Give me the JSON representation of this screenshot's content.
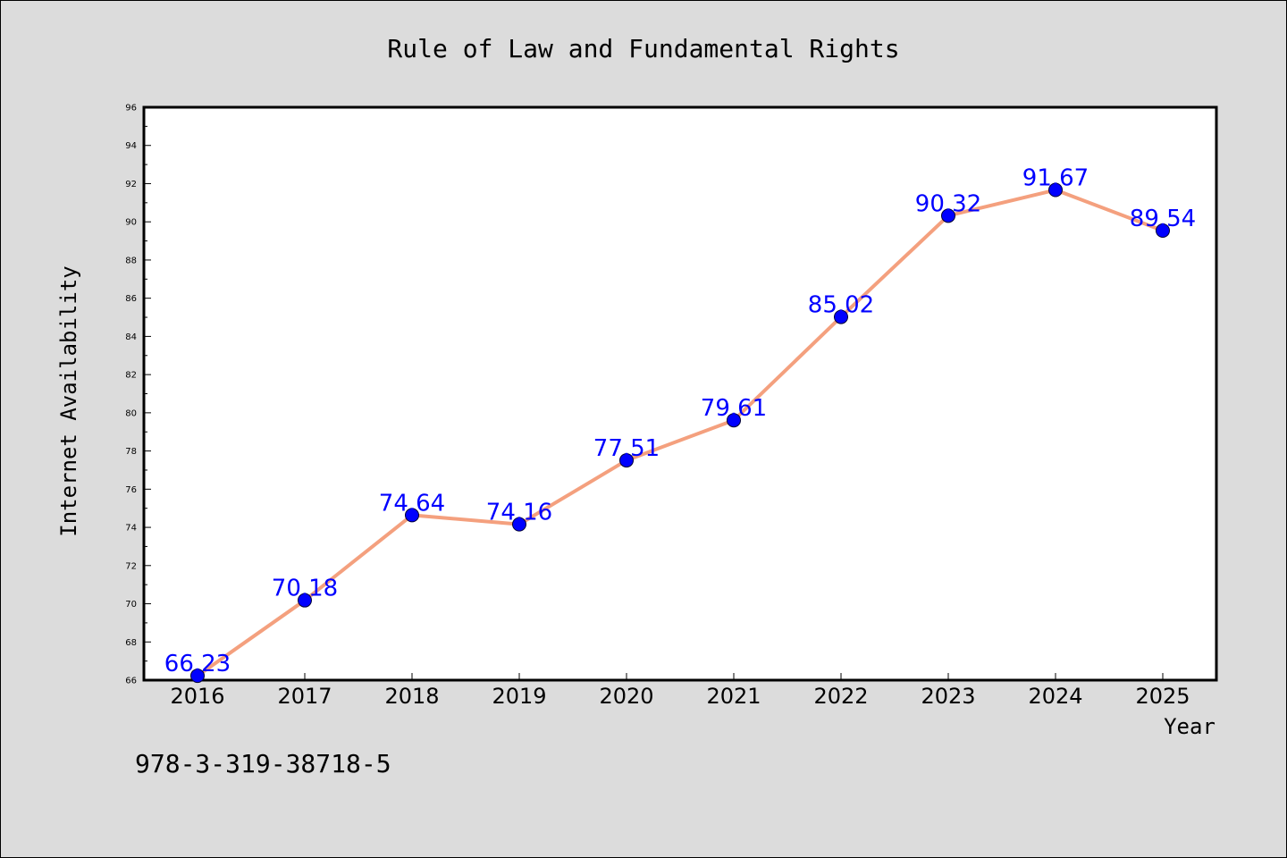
{
  "chart_data": {
    "type": "line",
    "title": "Rule of Law and Fundamental Rights",
    "xlabel": "Year",
    "ylabel": "Internet Availability",
    "x": [
      "2016",
      "2017",
      "2018",
      "2019",
      "2020",
      "2021",
      "2022",
      "2023",
      "2024",
      "2025"
    ],
    "series": [
      {
        "values": [
          66.23,
          70.18,
          74.64,
          74.16,
          77.51,
          79.61,
          85.02,
          90.32,
          91.67,
          89.54
        ],
        "line_color": "#f4a07e",
        "marker_color": "#0000ff"
      }
    ],
    "data_labels": [
      "66.23",
      "70.18",
      "74.64",
      "74.16",
      "77.51",
      "79.61",
      "85.02",
      "90.32",
      "91.67",
      "89.54"
    ],
    "ylim": [
      66,
      96
    ],
    "yticks": [
      "66",
      "68",
      "70",
      "72",
      "74",
      "76",
      "78",
      "80",
      "82",
      "84",
      "86",
      "88",
      "90",
      "92",
      "94",
      "96"
    ],
    "grid": false,
    "legend": "none"
  },
  "footer": {
    "isbn": "978-3-319-38718-5"
  },
  "colors": {
    "background": "#dcdcdc",
    "plot_background": "#ffffff",
    "line": "#f4a07e",
    "marker": "#0000ff",
    "data_label": "#0000ff"
  }
}
